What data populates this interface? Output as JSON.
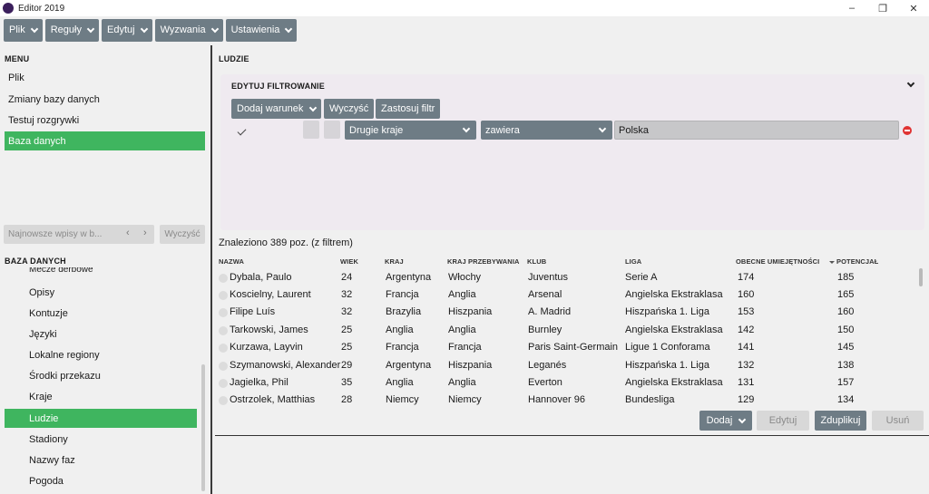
{
  "window": {
    "title": "Editor 2019",
    "icon": "app-logo-icon",
    "controls": [
      "minimize-icon",
      "restore-icon",
      "close-icon"
    ]
  },
  "menubar": [
    {
      "label": "Plik"
    },
    {
      "label": "Reguły"
    },
    {
      "label": "Edytuj"
    },
    {
      "label": "Wyzwania"
    },
    {
      "label": "Ustawienia"
    }
  ],
  "menu": {
    "title": "MENU",
    "items": [
      {
        "label": "Plik"
      },
      {
        "label": "Zmiany bazy danych"
      },
      {
        "label": "Testuj rozgrywki"
      },
      {
        "label": "Baza danych",
        "active": true
      }
    ]
  },
  "search": {
    "placeholder": "Najnowsze wpisy w b...",
    "clear_label": "Wyczyść"
  },
  "database": {
    "title": "BAZA DANYCH",
    "items": [
      {
        "label": "Mecze derbowe"
      },
      {
        "label": "Opisy"
      },
      {
        "label": "Kontuzje"
      },
      {
        "label": "Języki"
      },
      {
        "label": "Lokalne regiony"
      },
      {
        "label": "Środki przekazu"
      },
      {
        "label": "Kraje"
      },
      {
        "label": "Ludzie",
        "active": true
      },
      {
        "label": "Stadiony"
      },
      {
        "label": "Nazwy faz"
      },
      {
        "label": "Pogoda"
      }
    ]
  },
  "main": {
    "title": "LUDZIE",
    "filter": {
      "title": "EDYTUJ FILTROWANIE",
      "add_condition": "Dodaj warunek",
      "clear": "Wyczyść",
      "apply": "Zastosuj filtr",
      "field": "Drugie kraje",
      "operator": "zawiera",
      "value": "Polska"
    },
    "found_text": "Znaleziono 389 poz. (z filtrem)",
    "columns": [
      "NAZWA",
      "WIEK",
      "KRAJ",
      "KRAJ PRZEBYWANIA",
      "KLUB",
      "LIGA",
      "OBECNE UMIEJĘTNOŚCI",
      "POTENCJAŁ"
    ],
    "sort_column": "POTENCJAŁ",
    "rows": [
      [
        "Dybala, Paulo",
        "24",
        "Argentyna",
        "Włochy",
        "Juventus",
        "Serie A",
        "174",
        "185"
      ],
      [
        "Koscielny, Laurent",
        "32",
        "Francja",
        "Anglia",
        "Arsenal",
        "Angielska Ekstraklasa",
        "160",
        "165"
      ],
      [
        "Filipe Luís",
        "32",
        "Brazylia",
        "Hiszpania",
        "A. Madrid",
        "Hiszpańska 1. Liga",
        "153",
        "160"
      ],
      [
        "Tarkowski, James",
        "25",
        "Anglia",
        "Anglia",
        "Burnley",
        "Angielska Ekstraklasa",
        "142",
        "150"
      ],
      [
        "Kurzawa, Layvin",
        "25",
        "Francja",
        "Francja",
        "Paris Saint-Germain",
        "Ligue 1 Conforama",
        "141",
        "145"
      ],
      [
        "Szymanowski, Alexander",
        "29",
        "Argentyna",
        "Hiszpania",
        "Leganés",
        "Hiszpańska 1. Liga",
        "132",
        "138"
      ],
      [
        "Jagielka, Phil",
        "35",
        "Anglia",
        "Anglia",
        "Everton",
        "Angielska Ekstraklasa",
        "131",
        "157"
      ],
      [
        "Ostrzolek, Matthias",
        "28",
        "Niemcy",
        "Niemcy",
        "Hannover 96",
        "Bundesliga",
        "129",
        "134"
      ]
    ],
    "actions": {
      "add": "Dodaj",
      "edit": "Edytuj",
      "duplicate": "Zduplikuj",
      "delete": "Usuń"
    }
  }
}
